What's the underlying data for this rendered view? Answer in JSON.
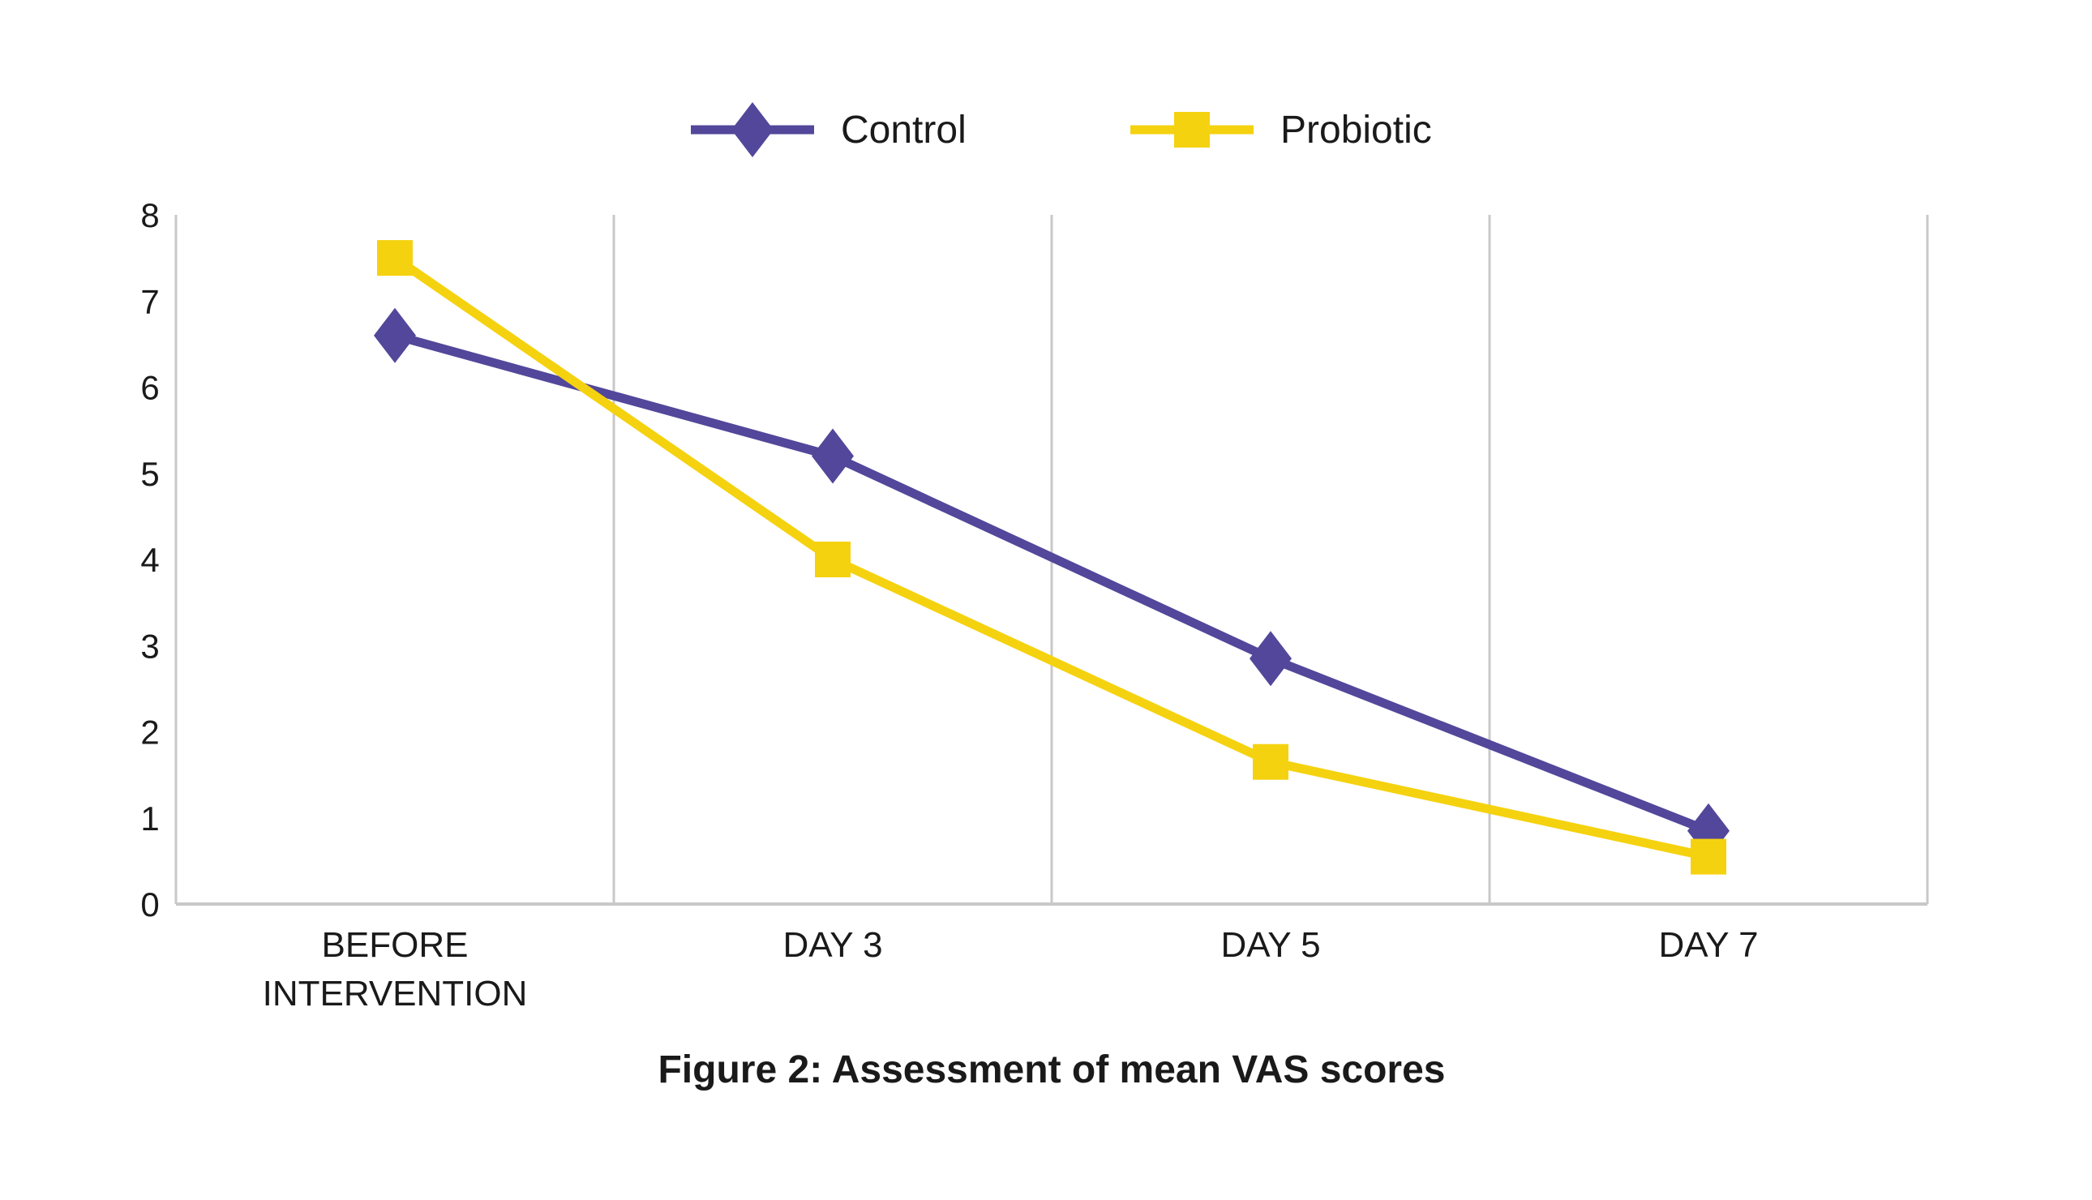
{
  "chart_data": {
    "type": "line",
    "title": "",
    "caption": "Figure 2: Assessment of mean VAS scores",
    "xlabel": "",
    "ylabel": "",
    "categories": [
      [
        "BEFORE",
        "INTERVENTION"
      ],
      [
        "DAY 3"
      ],
      [
        "DAY 5"
      ],
      [
        "DAY 7"
      ]
    ],
    "ylim": [
      0,
      8
    ],
    "yticks": [
      "0",
      "1",
      "2",
      "3",
      "4",
      "5",
      "6",
      "7",
      "8"
    ],
    "grid": "vertical category separators",
    "legend_position": "top-center",
    "series": [
      {
        "name": "Control",
        "color": "#52479A",
        "marker": "diamond",
        "values": [
          6.6,
          5.2,
          2.85,
          0.85
        ]
      },
      {
        "name": "Probiotic",
        "color": "#F5D20F",
        "marker": "square",
        "values": [
          7.5,
          4.0,
          1.65,
          0.55
        ]
      }
    ]
  }
}
